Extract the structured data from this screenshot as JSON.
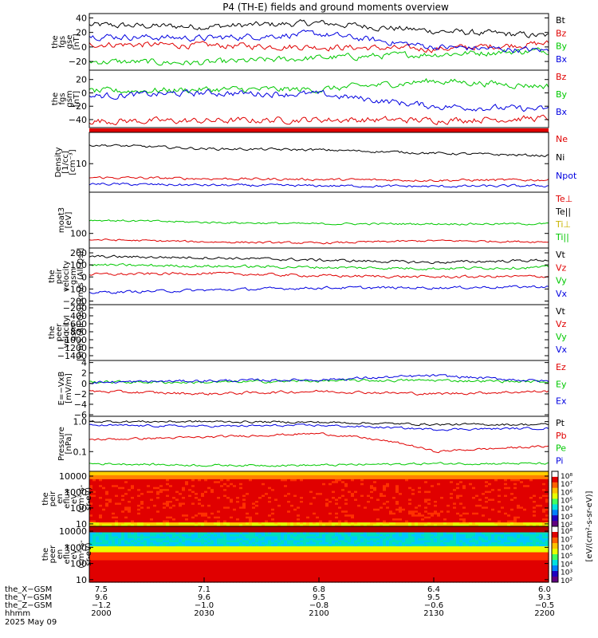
{
  "title": "P4 (TH-E) fields and ground moments overview",
  "panels": [
    {
      "key": "fgs_gse",
      "ylabel": [
        "the",
        "fgs",
        "gse",
        "[nT]"
      ],
      "ticks": [
        "40",
        "20",
        "0",
        "−20"
      ],
      "tick_values": [
        40,
        20,
        0,
        -20
      ],
      "ylim": [
        -32,
        46
      ],
      "legend": [
        {
          "text": "Bt",
          "color": "#000000"
        },
        {
          "text": "Bz",
          "color": "#e00000"
        },
        {
          "text": "By",
          "color": "#00c800"
        },
        {
          "text": "Bx",
          "color": "#0000e0"
        }
      ]
    },
    {
      "key": "fgs_gsm",
      "ylabel": [
        "the",
        "fgs",
        "gsm",
        "[nT]"
      ],
      "ticks": [
        "20",
        "0",
        "−20",
        "−40"
      ],
      "tick_values": [
        20,
        0,
        -20,
        -40
      ],
      "ylim": [
        -52,
        34
      ],
      "legend": [
        {
          "text": "Bz",
          "color": "#e00000"
        },
        {
          "text": "By",
          "color": "#00c800"
        },
        {
          "text": "Bx",
          "color": "#0000e0"
        }
      ]
    },
    {
      "key": "density",
      "ylabel": [
        "Density",
        "[1/cc]",
        "[cm⁻³]"
      ],
      "ticks": [
        "10"
      ],
      "tick_values": [
        10
      ],
      "ylim": [
        1.5,
        80
      ],
      "log": true,
      "legend": [
        {
          "text": "Ne",
          "color": "#e00000"
        },
        {
          "text": "Ni",
          "color": "#000000"
        },
        {
          "text": "Npot",
          "color": "#0000e0"
        }
      ]
    },
    {
      "key": "temperature",
      "ylabel": [
        "moat3",
        "[eV]"
      ],
      "ticks": [
        "100"
      ],
      "tick_values": [
        100
      ],
      "ylim": [
        30,
        3000
      ],
      "log": true,
      "legend": [
        {
          "text": "Te⊥",
          "color": "#e00000"
        },
        {
          "text": "Te||",
          "color": "#000000"
        },
        {
          "text": "Ti⊥",
          "color": "#c8b400"
        },
        {
          "text": "Ti||",
          "color": "#00c800"
        }
      ]
    },
    {
      "key": "velocity_gsm",
      "ylabel": [
        "the",
        "peir",
        "velocity",
        "gsm",
        "[km/s (All Qs)]"
      ],
      "ticks": [
        "200",
        "100",
        "0",
        "−100",
        "−200"
      ],
      "tick_values": [
        200,
        100,
        0,
        -100,
        -200
      ],
      "ylim": [
        -230,
        240
      ],
      "legend": [
        {
          "text": "Vt",
          "color": "#000000"
        },
        {
          "text": "Vz",
          "color": "#e00000"
        },
        {
          "text": "Vy",
          "color": "#00c800"
        },
        {
          "text": "Vx",
          "color": "#0000e0"
        }
      ]
    },
    {
      "key": "peer_velocity",
      "ylabel": [
        "the",
        "peer",
        "velocity",
        "gsm",
        "[km/s (All Qs)]"
      ],
      "ticks": [
        "−200",
        "−400",
        "−600",
        "−800",
        "−1000",
        "−1200",
        "−1400"
      ],
      "tick_values": [
        -200,
        -400,
        -600,
        -800,
        -1000,
        -1200,
        -1400
      ],
      "ylim": [
        -1520,
        -120
      ],
      "legend": [
        {
          "text": "Vt",
          "color": "#000000"
        },
        {
          "text": "Vz",
          "color": "#e00000"
        },
        {
          "text": "Vy",
          "color": "#00c800"
        },
        {
          "text": "Vx",
          "color": "#0000e0"
        }
      ]
    },
    {
      "key": "efield",
      "ylabel": [
        "E=−VxB",
        "[mV/m]"
      ],
      "ticks": [
        "4",
        "2",
        "0",
        "−2",
        "−4",
        "−6"
      ],
      "tick_values": [
        4,
        2,
        0,
        -2,
        -4,
        -6
      ],
      "ylim": [
        -6.3,
        4.4
      ],
      "legend": [
        {
          "text": "Ez",
          "color": "#e00000"
        },
        {
          "text": "Ey",
          "color": "#00c800"
        },
        {
          "text": "Ex",
          "color": "#0000e0"
        }
      ]
    },
    {
      "key": "pressure",
      "ylabel": [
        "Pressure",
        "[nPa]"
      ],
      "ticks": [
        "1.0",
        "0.1"
      ],
      "tick_values": [
        1.0,
        0.1
      ],
      "ylim": [
        0.022,
        1.5
      ],
      "log": true,
      "legend": [
        {
          "text": "Pt",
          "color": "#000000"
        },
        {
          "text": "Pb",
          "color": "#e00000"
        },
        {
          "text": "Pe",
          "color": "#00c800"
        },
        {
          "text": "Pi",
          "color": "#0000e0"
        }
      ]
    },
    {
      "key": "peir_spec",
      "ylabel": [
        "the",
        "peir",
        "en",
        "eflux",
        "eV",
        "(cm²-s-",
        "sr-eV)"
      ],
      "ticks": [
        "10000",
        "1000",
        "100",
        "10"
      ],
      "tick_values": [
        10000,
        1000,
        100,
        10
      ],
      "ylim": [
        7,
        20000
      ],
      "log": true,
      "legend": []
    },
    {
      "key": "peer_spec",
      "ylabel": [
        "the",
        "peer",
        "en",
        "eflux",
        "eV",
        "(cm²-s-",
        "sr-eV)"
      ],
      "ticks": [
        "10000",
        "1000",
        "100",
        "10"
      ],
      "tick_values": [
        10000,
        1000,
        100,
        10
      ],
      "ylim": [
        7,
        20000
      ],
      "log": true,
      "legend": []
    }
  ],
  "colorbar": {
    "label": "[eV/(cm²-s-sr-eV)]",
    "peir_ticks": [
      "10⁸",
      "10⁷",
      "10⁶",
      "10⁵",
      "10⁴",
      "10³",
      "10²"
    ],
    "peer_ticks": [
      "10⁸",
      "10⁷",
      "10⁶",
      "10⁵",
      "10⁴",
      "10³",
      "10²"
    ]
  },
  "xaxis": {
    "rows": [
      {
        "label": "the_X−GSM",
        "values": [
          "7.5",
          "7.1",
          "6.8",
          "6.4",
          "6.0"
        ]
      },
      {
        "label": "the_Y−GSM",
        "values": [
          "9.6",
          "9.6",
          "9.5",
          "9.5",
          "9.3"
        ]
      },
      {
        "label": "the_Z−GSM",
        "values": [
          "−1.2",
          "−1.0",
          "−0.8",
          "−0.6",
          "−0.5"
        ]
      },
      {
        "label": "hhmm",
        "values": [
          "2000",
          "2030",
          "2100",
          "2130",
          "2200"
        ]
      }
    ],
    "date": "2025 May 09"
  },
  "chart_data": {
    "type": "line",
    "title": "P4 (TH-E) fields and ground moments overview",
    "x": [
      "2000",
      "2030",
      "2100",
      "2130",
      "2200"
    ],
    "series": [
      {
        "name": "Bt",
        "panel": "fgs_gse",
        "values": [
          30,
          28,
          33,
          22,
          15
        ]
      },
      {
        "name": "Bz",
        "panel": "fgs_gse",
        "values": [
          4,
          2,
          0,
          -3,
          5
        ]
      },
      {
        "name": "By",
        "panel": "fgs_gse",
        "values": [
          -20,
          -22,
          -15,
          -10,
          -5
        ]
      },
      {
        "name": "Bx",
        "panel": "fgs_gse",
        "values": [
          15,
          12,
          18,
          0,
          -5
        ]
      },
      {
        "name": "Bz",
        "panel": "fgs_gsm",
        "values": [
          -42,
          -42,
          -40,
          -41,
          -38
        ]
      },
      {
        "name": "By",
        "panel": "fgs_gsm",
        "values": [
          2,
          5,
          5,
          18,
          10
        ]
      },
      {
        "name": "Bx",
        "panel": "fgs_gsm",
        "values": [
          -5,
          0,
          -2,
          -20,
          -25
        ]
      },
      {
        "name": "Ne",
        "panel": "density",
        "values": [
          4,
          3.7,
          3.5,
          3.3,
          3.4
        ]
      },
      {
        "name": "Ni",
        "panel": "density",
        "values": [
          35,
          27,
          25,
          20,
          17
        ]
      },
      {
        "name": "Npot",
        "panel": "density",
        "values": [
          2.6,
          2.4,
          2.3,
          2.2,
          2.3
        ]
      },
      {
        "name": "Te⊥",
        "panel": "temperature",
        "values": [
          60,
          50,
          45,
          55,
          50
        ]
      },
      {
        "name": "Ti||",
        "panel": "temperature",
        "values": [
          300,
          250,
          220,
          220,
          220
        ]
      },
      {
        "name": "Vt",
        "panel": "velocity_gsm",
        "values": [
          170,
          160,
          140,
          120,
          140
        ]
      },
      {
        "name": "Vz",
        "panel": "velocity_gsm",
        "values": [
          20,
          30,
          10,
          0,
          5
        ]
      },
      {
        "name": "Vy",
        "panel": "velocity_gsm",
        "values": [
          100,
          90,
          80,
          70,
          80
        ]
      },
      {
        "name": "Vx",
        "panel": "velocity_gsm",
        "values": [
          -130,
          -110,
          -90,
          -90,
          -80
        ]
      },
      {
        "name": "Ez",
        "panel": "efield",
        "values": [
          -1.5,
          -2,
          -1.5,
          -2,
          -1.5
        ]
      },
      {
        "name": "Ey",
        "panel": "efield",
        "values": [
          0.3,
          0.2,
          0.5,
          0.6,
          0.3
        ]
      },
      {
        "name": "Ex",
        "panel": "efield",
        "values": [
          0.2,
          0.5,
          0.7,
          1.5,
          0.4
        ]
      },
      {
        "name": "Pt",
        "panel": "pressure",
        "values": [
          1.0,
          1.0,
          0.95,
          0.8,
          0.8
        ]
      },
      {
        "name": "Pb",
        "panel": "pressure",
        "values": [
          0.25,
          0.3,
          0.4,
          0.1,
          0.15
        ]
      },
      {
        "name": "Pe",
        "panel": "pressure",
        "values": [
          0.04,
          0.035,
          0.035,
          0.04,
          0.04
        ]
      },
      {
        "name": "Pi",
        "panel": "pressure",
        "values": [
          0.75,
          0.7,
          0.75,
          0.55,
          0.6
        ]
      }
    ],
    "xlabel": "hhmm",
    "grid": false,
    "legend_placement": "right"
  }
}
